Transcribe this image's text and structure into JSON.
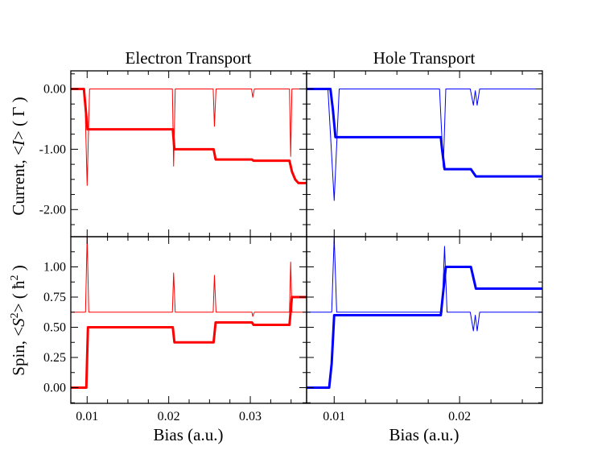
{
  "chart_data": [
    {
      "type": "line",
      "panel": "top-left",
      "title": "Electron Transport",
      "xlabel": "",
      "ylabel": "",
      "xlim": [
        0.008,
        0.0369
      ],
      "ylim": [
        -2.45,
        0.3
      ],
      "xticks": [
        0.01,
        0.02,
        0.03
      ],
      "xtick_labels": [
        "",
        "",
        ""
      ],
      "yticks": [
        0.0,
        -1.0,
        -2.0
      ],
      "ytick_labels": [
        "0.00",
        "-1.00",
        "-2.00"
      ],
      "series": [
        {
          "style": "thick",
          "color": "#ff0000",
          "points": [
            [
              0.008,
              0.0
            ],
            [
              0.0096,
              0.0
            ],
            [
              0.01005,
              -0.67
            ],
            [
              0.0205,
              -0.67
            ],
            [
              0.0207,
              -1.0
            ],
            [
              0.0255,
              -1.0
            ],
            [
              0.02575,
              -1.17
            ],
            [
              0.0302,
              -1.17
            ],
            [
              0.0304,
              -1.19
            ],
            [
              0.0348,
              -1.19
            ],
            [
              0.0351,
              -1.37
            ],
            [
              0.0355,
              -1.5
            ],
            [
              0.0359,
              -1.56
            ],
            [
              0.0369,
              -1.56
            ]
          ]
        },
        {
          "style": "thin",
          "color": "#ff0000",
          "points": [
            [
              0.008,
              0.0
            ],
            [
              0.0097,
              0.0
            ],
            [
              0.01,
              -1.6
            ],
            [
              0.0103,
              0.0
            ],
            [
              0.02045,
              0.0
            ],
            [
              0.0206,
              -1.28
            ],
            [
              0.0208,
              0.0
            ],
            [
              0.02545,
              0.0
            ],
            [
              0.0256,
              -0.62
            ],
            [
              0.0258,
              0.0
            ],
            [
              0.03015,
              0.0
            ],
            [
              0.0303,
              -0.14
            ],
            [
              0.0305,
              0.0
            ],
            [
              0.0348,
              0.0
            ],
            [
              0.03495,
              -1.12
            ],
            [
              0.0351,
              0.0
            ],
            [
              0.0369,
              0.0
            ]
          ]
        }
      ]
    },
    {
      "type": "line",
      "panel": "top-right",
      "title": "Hole Transport",
      "xlabel": "",
      "ylabel": "",
      "xlim": [
        0.0078,
        0.0266
      ],
      "ylim": [
        -2.45,
        0.3
      ],
      "xticks": [
        0.01,
        0.02
      ],
      "xtick_labels": [
        "",
        ""
      ],
      "yticks": [
        0.0,
        -1.0,
        -2.0
      ],
      "ytick_labels": [
        "",
        "",
        ""
      ],
      "series": [
        {
          "style": "thick",
          "color": "#0000ff",
          "points": [
            [
              0.0078,
              0.0
            ],
            [
              0.0097,
              0.0
            ],
            [
              0.0099,
              -0.35
            ],
            [
              0.0101,
              -0.8
            ],
            [
              0.0185,
              -0.8
            ],
            [
              0.0186,
              -1.0
            ],
            [
              0.0188,
              -1.33
            ],
            [
              0.0209,
              -1.33
            ],
            [
              0.0213,
              -1.45
            ],
            [
              0.0266,
              -1.45
            ]
          ]
        },
        {
          "style": "thin",
          "color": "#0000ff",
          "points": [
            [
              0.0078,
              0.0
            ],
            [
              0.0095,
              0.0
            ],
            [
              0.01,
              -1.85
            ],
            [
              0.0104,
              0.0
            ],
            [
              0.0184,
              0.0
            ],
            [
              0.0187,
              -1.3
            ],
            [
              0.0189,
              0.0
            ],
            [
              0.02085,
              0.0
            ],
            [
              0.0211,
              -0.27
            ],
            [
              0.02125,
              -0.03
            ],
            [
              0.0214,
              -0.27
            ],
            [
              0.0216,
              0.0
            ],
            [
              0.0266,
              0.0
            ]
          ]
        }
      ]
    },
    {
      "type": "line",
      "panel": "bottom-left",
      "title": "",
      "xlabel": "Bias (a.u.)",
      "ylabel": "",
      "xlim": [
        0.008,
        0.0369
      ],
      "ylim": [
        -0.13,
        1.25
      ],
      "xticks": [
        0.01,
        0.02,
        0.03
      ],
      "xtick_labels": [
        "0.01",
        "0.02",
        "0.03"
      ],
      "yticks": [
        0.0,
        0.25,
        0.5,
        0.75,
        1.0
      ],
      "ytick_labels": [
        "0.00",
        "0.25",
        "0.50",
        "0.75",
        "1.00"
      ],
      "series": [
        {
          "style": "thick",
          "color": "#ff0000",
          "points": [
            [
              0.008,
              0.0
            ],
            [
              0.0099,
              0.0
            ],
            [
              0.0101,
              0.5
            ],
            [
              0.0205,
              0.5
            ],
            [
              0.0207,
              0.375
            ],
            [
              0.0255,
              0.375
            ],
            [
              0.02575,
              0.54
            ],
            [
              0.0302,
              0.54
            ],
            [
              0.0304,
              0.52
            ],
            [
              0.0348,
              0.52
            ],
            [
              0.0351,
              0.75
            ],
            [
              0.0369,
              0.75
            ]
          ]
        },
        {
          "style": "thin",
          "color": "#ff0000",
          "points": [
            [
              0.008,
              0.625
            ],
            [
              0.0098,
              0.625
            ],
            [
              0.01,
              1.25
            ],
            [
              0.0102,
              0.625
            ],
            [
              0.02045,
              0.625
            ],
            [
              0.0206,
              0.95
            ],
            [
              0.0208,
              0.625
            ],
            [
              0.02545,
              0.625
            ],
            [
              0.0256,
              0.93
            ],
            [
              0.0258,
              0.625
            ],
            [
              0.0302,
              0.625
            ],
            [
              0.0303,
              0.59
            ],
            [
              0.0305,
              0.625
            ],
            [
              0.0348,
              0.625
            ],
            [
              0.03495,
              1.04
            ],
            [
              0.0351,
              0.625
            ],
            [
              0.0369,
              0.625
            ]
          ]
        }
      ]
    },
    {
      "type": "line",
      "panel": "bottom-right",
      "title": "",
      "xlabel": "Bias (a.u.)",
      "ylabel": "",
      "xlim": [
        0.0078,
        0.0266
      ],
      "ylim": [
        -0.13,
        1.25
      ],
      "xticks": [
        0.01,
        0.02
      ],
      "xtick_labels": [
        "0.01",
        "0.02"
      ],
      "yticks": [
        0.0,
        0.25,
        0.5,
        0.75,
        1.0
      ],
      "ytick_labels": [
        "",
        "",
        "",
        "",
        ""
      ],
      "series": [
        {
          "style": "thick",
          "color": "#0000ff",
          "points": [
            [
              0.0078,
              0.0
            ],
            [
              0.0096,
              0.0
            ],
            [
              0.0098,
              0.2
            ],
            [
              0.01,
              0.6
            ],
            [
              0.0185,
              0.6
            ],
            [
              0.0187,
              0.8
            ],
            [
              0.0189,
              1.0
            ],
            [
              0.0209,
              1.0
            ],
            [
              0.0213,
              0.82
            ],
            [
              0.0266,
              0.82
            ]
          ]
        },
        {
          "style": "thin",
          "color": "#0000ff",
          "points": [
            [
              0.0078,
              0.625
            ],
            [
              0.0098,
              0.625
            ],
            [
              0.01,
              1.25
            ],
            [
              0.0102,
              0.625
            ],
            [
              0.0186,
              0.625
            ],
            [
              0.0188,
              1.17
            ],
            [
              0.019,
              0.625
            ],
            [
              0.02085,
              0.625
            ],
            [
              0.0211,
              0.47
            ],
            [
              0.02125,
              0.6
            ],
            [
              0.0214,
              0.47
            ],
            [
              0.0216,
              0.625
            ],
            [
              0.0266,
              0.625
            ]
          ]
        }
      ]
    }
  ],
  "labels": {
    "ylabel_current_prefix": "Current, <",
    "ylabel_current_var": "I",
    "ylabel_current_suffix": "> ( Γ )",
    "ylabel_spin_prefix": "Spin, <",
    "ylabel_spin_var": "S",
    "ylabel_spin_sup": "2",
    "ylabel_spin_mid": "> ( ħ",
    "ylabel_spin_sup2": "2",
    "ylabel_spin_suffix": " )"
  },
  "colors": {
    "electron": "#ff0000",
    "hole": "#0000ff",
    "axes": "#000000",
    "background": "#ffffff"
  }
}
